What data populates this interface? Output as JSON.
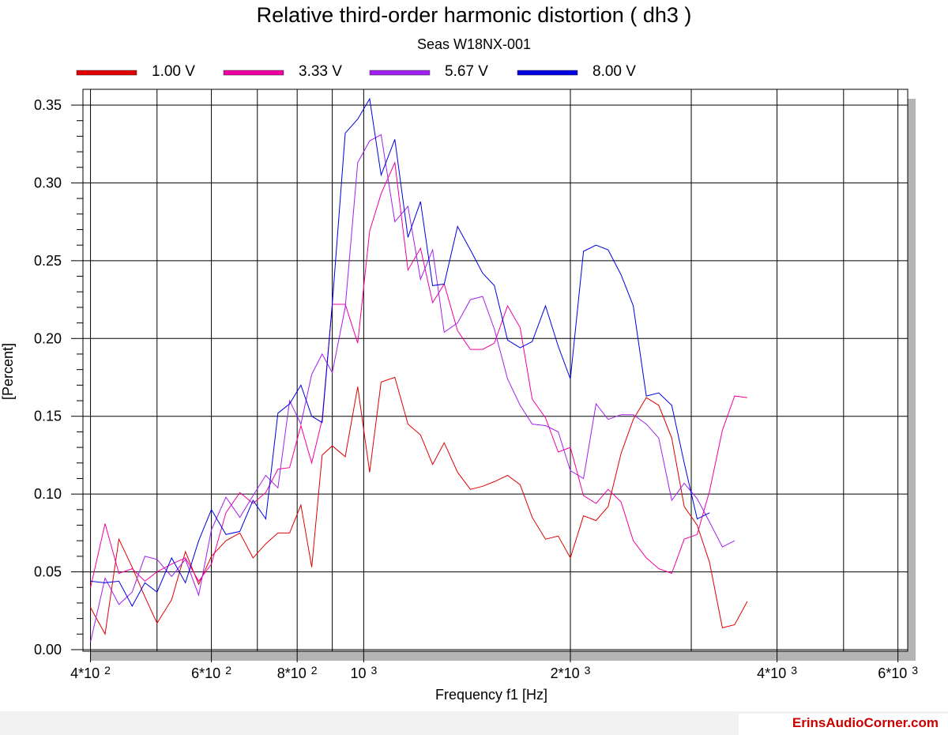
{
  "chart_data": {
    "type": "line",
    "title": "Relative third-order harmonic distortion  ( dh3 )",
    "subtitle": "Seas W18NX-001",
    "xlabel": "Frequency f1  [Hz]",
    "ylabel": "[Percent]",
    "x_scale": "log",
    "xlim": [
      390,
      6200
    ],
    "ylim": [
      0,
      0.35
    ],
    "y_ticks": [
      "0.00",
      "0.05",
      "0.10",
      "0.15",
      "0.20",
      "0.25",
      "0.30",
      "0.35"
    ],
    "x_ticks": [
      {
        "value": 400,
        "base": "4*10",
        "exp": "2"
      },
      {
        "value": 600,
        "base": "6*10",
        "exp": "2"
      },
      {
        "value": 800,
        "base": "8*10",
        "exp": "2"
      },
      {
        "value": 1000,
        "base": "10",
        "exp": "3"
      },
      {
        "value": 2000,
        "base": "2*10",
        "exp": "3"
      },
      {
        "value": 4000,
        "base": "4*10",
        "exp": "3"
      },
      {
        "value": 6000,
        "base": "6*10",
        "exp": "3"
      }
    ],
    "x_gridlines": [
      400,
      500,
      600,
      700,
      800,
      900,
      1000,
      2000,
      3000,
      4000,
      5000,
      6000
    ],
    "grid": true,
    "legend_position": "top",
    "x": [
      400,
      420,
      440,
      460,
      480,
      500,
      525,
      550,
      575,
      600,
      630,
      660,
      690,
      720,
      750,
      780,
      810,
      840,
      870,
      900,
      940,
      980,
      1020,
      1060,
      1110,
      1160,
      1210,
      1260,
      1310,
      1370,
      1430,
      1490,
      1550,
      1620,
      1690,
      1760,
      1840,
      1920,
      2000,
      2090,
      2180,
      2270,
      2370,
      2470,
      2580,
      2690,
      2810,
      2930,
      3060,
      3190,
      3330,
      3470,
      3620,
      3780,
      3940,
      4110,
      4290,
      4470,
      4670,
      4870,
      5080,
      5300,
      5530,
      5770,
      6000
    ],
    "series": [
      {
        "name": "1.00 V",
        "color": "#e00000",
        "values": [
          0.027,
          0.01,
          0.071,
          0.053,
          0.034,
          0.017,
          0.032,
          0.063,
          0.042,
          0.06,
          0.07,
          0.075,
          0.059,
          0.068,
          0.075,
          0.075,
          0.093,
          0.053,
          0.125,
          0.131,
          0.124,
          0.169,
          0.114,
          0.172,
          0.175,
          0.145,
          0.138,
          0.119,
          0.133,
          0.114,
          0.103,
          0.105,
          0.108,
          0.112,
          0.106,
          0.085,
          0.071,
          0.073,
          0.059,
          0.086,
          0.083,
          0.092,
          0.126,
          0.148,
          0.162,
          0.157,
          0.136,
          0.092,
          0.08,
          0.056,
          0.014,
          0.016,
          0.031,
          null,
          null,
          null,
          null,
          null,
          null,
          null,
          null,
          null,
          null,
          null,
          null
        ]
      },
      {
        "name": "3.33 V",
        "color": "#f000a0",
        "values": [
          0.04,
          0.081,
          0.049,
          0.052,
          0.044,
          0.05,
          0.055,
          0.059,
          0.044,
          0.055,
          0.088,
          0.101,
          0.094,
          0.101,
          0.116,
          0.117,
          0.144,
          0.12,
          0.148,
          0.222,
          0.222,
          0.197,
          0.269,
          0.293,
          0.313,
          0.244,
          0.258,
          0.223,
          0.235,
          0.205,
          0.193,
          0.193,
          0.197,
          0.221,
          0.207,
          0.161,
          0.149,
          0.127,
          0.13,
          0.099,
          0.094,
          0.103,
          0.095,
          0.07,
          0.059,
          0.052,
          0.049,
          0.071,
          0.074,
          0.102,
          0.141,
          0.163,
          0.162,
          null,
          null,
          null,
          null,
          null,
          null,
          null,
          null,
          null,
          null,
          null,
          null
        ]
      },
      {
        "name": "5.67 V",
        "color": "#a020f0",
        "values": [
          0.005,
          0.046,
          0.029,
          0.037,
          0.06,
          0.058,
          0.047,
          0.058,
          0.035,
          0.077,
          0.098,
          0.085,
          0.099,
          0.112,
          0.104,
          0.16,
          0.145,
          0.177,
          0.19,
          0.178,
          0.22,
          0.313,
          0.327,
          0.331,
          0.275,
          0.285,
          0.238,
          0.257,
          0.204,
          0.21,
          0.225,
          0.227,
          0.206,
          0.174,
          0.157,
          0.145,
          0.144,
          0.14,
          0.115,
          0.11,
          0.158,
          0.148,
          0.151,
          0.151,
          0.145,
          0.136,
          0.096,
          0.107,
          0.097,
          0.082,
          0.066,
          0.07,
          null,
          null,
          null,
          null,
          null,
          null,
          null,
          null,
          null,
          null,
          null,
          null,
          null
        ]
      },
      {
        "name": "8.00 V",
        "color": "#0000e0",
        "values": [
          0.044,
          0.043,
          0.044,
          0.028,
          0.043,
          0.037,
          0.059,
          0.043,
          0.07,
          0.09,
          0.074,
          0.076,
          0.096,
          0.084,
          0.152,
          0.158,
          0.17,
          0.15,
          0.146,
          0.222,
          0.332,
          0.341,
          0.354,
          0.305,
          0.328,
          0.265,
          0.288,
          0.234,
          0.235,
          0.272,
          0.257,
          0.242,
          0.234,
          0.199,
          0.194,
          0.198,
          0.221,
          0.195,
          0.174,
          0.256,
          0.26,
          0.257,
          0.241,
          0.221,
          0.163,
          0.165,
          0.157,
          0.12,
          0.084,
          0.088,
          null,
          null,
          null,
          null,
          null,
          null,
          null,
          null,
          null,
          null,
          null,
          null,
          null,
          null,
          null
        ]
      }
    ]
  },
  "watermark": "ErinsAudioCorner.com"
}
